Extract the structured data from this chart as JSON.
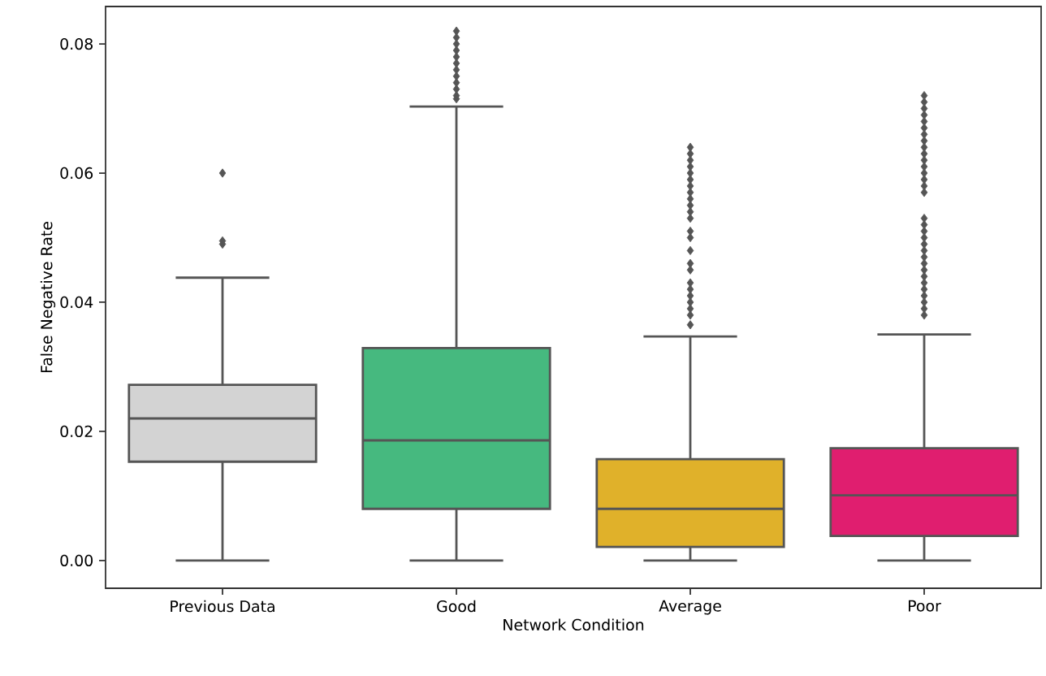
{
  "chart_data": {
    "type": "box",
    "xlabel": "Network Condition",
    "ylabel": "False Negative Rate",
    "categories": [
      "Previous Data",
      "Good",
      "Average",
      "Poor"
    ],
    "colors": [
      "#d3d3d3",
      "#46b97f",
      "#e0b12a",
      "#e01e6f"
    ],
    "boxes": [
      {
        "low": 0,
        "q1": 0.0153,
        "median": 0.022,
        "q3": 0.0272,
        "high": 0.0438,
        "outliers": [
          0.049,
          0.0495,
          0.06
        ]
      },
      {
        "low": 0,
        "q1": 0.008,
        "median": 0.0186,
        "q3": 0.0329,
        "high": 0.0703,
        "outliers": [
          0.0715,
          0.072,
          0.073,
          0.074,
          0.075,
          0.076,
          0.077,
          0.078,
          0.079,
          0.08,
          0.081,
          0.082
        ]
      },
      {
        "low": 0,
        "q1": 0.0021,
        "median": 0.008,
        "q3": 0.0157,
        "high": 0.0347,
        "outliers": [
          0.0365,
          0.038,
          0.039,
          0.04,
          0.041,
          0.042,
          0.043,
          0.045,
          0.046,
          0.048,
          0.05,
          0.051,
          0.053,
          0.054,
          0.055,
          0.056,
          0.057,
          0.058,
          0.059,
          0.06,
          0.061,
          0.062,
          0.063,
          0.064
        ]
      },
      {
        "low": 0,
        "q1": 0.0038,
        "median": 0.0101,
        "q3": 0.0174,
        "high": 0.035,
        "outliers": [
          0.038,
          0.039,
          0.04,
          0.041,
          0.042,
          0.043,
          0.044,
          0.045,
          0.046,
          0.047,
          0.048,
          0.049,
          0.05,
          0.051,
          0.052,
          0.053,
          0.057,
          0.058,
          0.059,
          0.06,
          0.061,
          0.062,
          0.063,
          0.064,
          0.065,
          0.066,
          0.067,
          0.068,
          0.069,
          0.07,
          0.071,
          0.072
        ]
      }
    ],
    "ylim": [
      -0.0043,
      0.0858
    ],
    "yticks": [
      {
        "value": 0,
        "label": "0.00"
      },
      0.02,
      0.04,
      0.06,
      0.08
    ],
    "marker": "diamond"
  }
}
